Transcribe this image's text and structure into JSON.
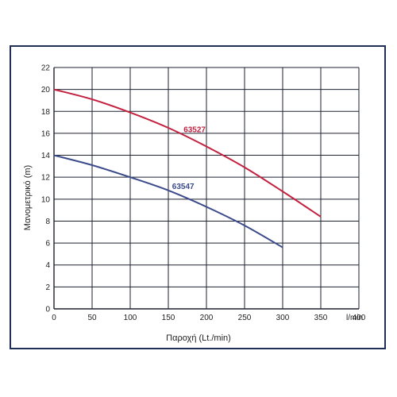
{
  "chart_data": {
    "type": "line",
    "title": "",
    "xlabel": "Παροχή (Lt./min)",
    "ylabel": "Μανομετρικό  (m)",
    "x_unit_label": "l/min",
    "xlim": [
      0,
      400
    ],
    "ylim": [
      0,
      22
    ],
    "x_ticks": [
      0,
      50,
      100,
      150,
      200,
      250,
      300,
      350,
      400
    ],
    "y_ticks": [
      0,
      2,
      4,
      6,
      8,
      10,
      12,
      14,
      16,
      18,
      20,
      22
    ],
    "grid": true,
    "series": [
      {
        "name": "63527",
        "color": "#c4203f",
        "x": [
          0,
          50,
          100,
          150,
          200,
          250,
          300,
          350
        ],
        "y": [
          20,
          19.1,
          17.9,
          16.5,
          14.8,
          12.9,
          10.7,
          8.4
        ]
      },
      {
        "name": "63547",
        "color": "#3b4a8a",
        "x": [
          0,
          50,
          100,
          150,
          200,
          250,
          300
        ],
        "y": [
          14,
          13.1,
          12.0,
          10.8,
          9.3,
          7.6,
          5.6
        ]
      }
    ]
  }
}
